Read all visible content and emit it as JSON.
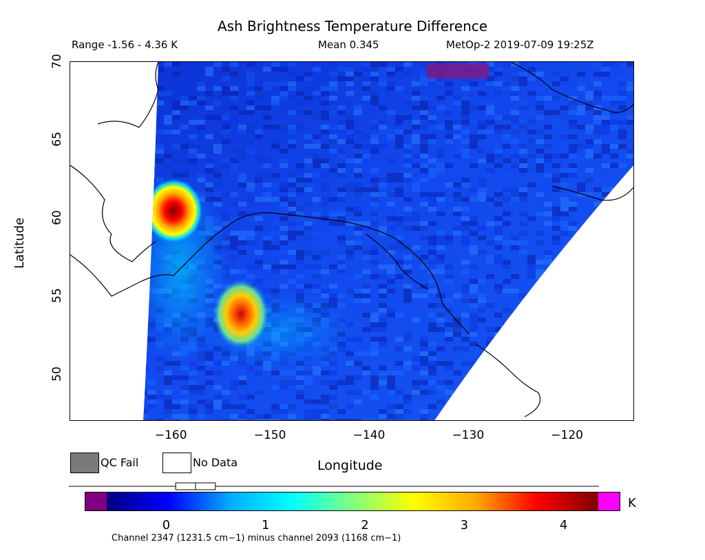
{
  "title": "Ash Brightness Temperature Difference",
  "header": {
    "range": "Range -1.56 - 4.36 K",
    "mean": "Mean 0.345",
    "satellite_time": "MetOp-2 2019-07-09 19:25Z"
  },
  "axes": {
    "xlabel": "Longitude",
    "ylabel": "Latitude",
    "xticks": [
      "−160",
      "−150",
      "−140",
      "−130",
      "−120"
    ],
    "yticks": [
      "70",
      "65",
      "60",
      "55",
      "50"
    ],
    "x_range": [
      -170,
      -113
    ],
    "y_range": [
      47,
      70
    ]
  },
  "legend": {
    "qc_fail": "QC Fail",
    "no_data": "No Data",
    "qc_fail_color": "#7a7a7a",
    "no_data_color": "#ffffff"
  },
  "colorbar": {
    "unit": "K",
    "ticks": [
      "0",
      "1",
      "2",
      "3",
      "4"
    ],
    "tick_values": [
      0,
      1,
      2,
      3,
      4
    ],
    "min": -0.6,
    "max": 4.36,
    "under_color": "#800080",
    "over_color": "#ff00ff",
    "colors": [
      "#00007f",
      "#0000ff",
      "#00aaff",
      "#00ffff",
      "#80ff80",
      "#ffff00",
      "#ffaa00",
      "#ff0000",
      "#7f0000"
    ],
    "box_stats": {
      "min": -0.1,
      "q1": 0.1,
      "median": 0.3,
      "q3": 0.5,
      "max": 4.36
    }
  },
  "footnote": "Channel 2347 (1231.5 cm−1) minus channel 2093 (1168 cm−1)",
  "map_features": {
    "hotspots": [
      {
        "lon": -159.4,
        "lat": 60.3,
        "value": 4.3
      },
      {
        "lon": -152.5,
        "lat": 53.9,
        "value": 3.6
      }
    ]
  }
}
